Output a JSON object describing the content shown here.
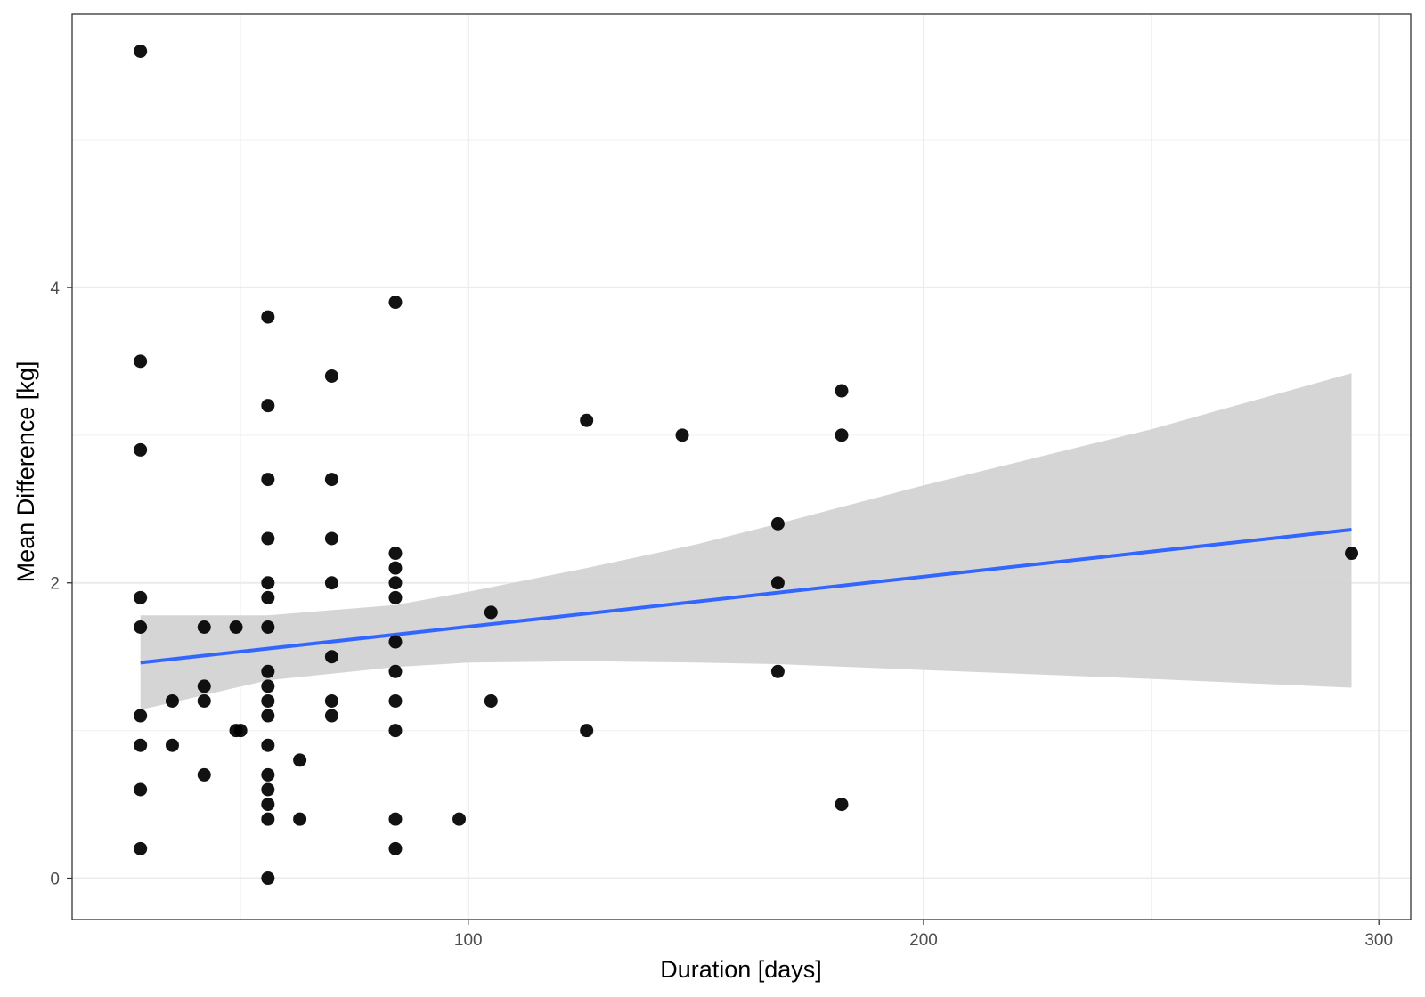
{
  "chart_data": {
    "type": "scatter",
    "xlabel": "Duration [days]",
    "ylabel": "Mean Difference [kg]",
    "xlim": [
      13,
      307
    ],
    "ylim": [
      -0.28,
      5.85
    ],
    "x_ticks": [
      100,
      200,
      300
    ],
    "y_ticks": [
      0,
      2,
      4
    ],
    "x_minor": [
      50,
      150,
      250
    ],
    "y_minor": [
      1,
      3,
      5
    ],
    "grid": true,
    "legend": "none",
    "points": [
      {
        "x": 28,
        "y": 5.6
      },
      {
        "x": 28,
        "y": 3.5
      },
      {
        "x": 28,
        "y": 2.9
      },
      {
        "x": 28,
        "y": 1.9
      },
      {
        "x": 28,
        "y": 1.7
      },
      {
        "x": 28,
        "y": 1.1
      },
      {
        "x": 28,
        "y": 0.9
      },
      {
        "x": 28,
        "y": 0.6
      },
      {
        "x": 28,
        "y": 0.2
      },
      {
        "x": 35,
        "y": 1.2
      },
      {
        "x": 35,
        "y": 0.9
      },
      {
        "x": 42,
        "y": 1.7
      },
      {
        "x": 42,
        "y": 1.3
      },
      {
        "x": 42,
        "y": 1.2
      },
      {
        "x": 42,
        "y": 0.7
      },
      {
        "x": 49,
        "y": 1.7
      },
      {
        "x": 49,
        "y": 1.0
      },
      {
        "x": 50,
        "y": 1.0
      },
      {
        "x": 56,
        "y": 3.8
      },
      {
        "x": 56,
        "y": 3.2
      },
      {
        "x": 56,
        "y": 2.7
      },
      {
        "x": 56,
        "y": 2.3
      },
      {
        "x": 56,
        "y": 2.0
      },
      {
        "x": 56,
        "y": 1.9
      },
      {
        "x": 56,
        "y": 1.7
      },
      {
        "x": 56,
        "y": 1.4
      },
      {
        "x": 56,
        "y": 1.3
      },
      {
        "x": 56,
        "y": 1.2
      },
      {
        "x": 56,
        "y": 1.1
      },
      {
        "x": 56,
        "y": 0.9
      },
      {
        "x": 56,
        "y": 0.7
      },
      {
        "x": 56,
        "y": 0.6
      },
      {
        "x": 56,
        "y": 0.5
      },
      {
        "x": 56,
        "y": 0.4
      },
      {
        "x": 56,
        "y": 0.0
      },
      {
        "x": 63,
        "y": 0.8
      },
      {
        "x": 63,
        "y": 0.4
      },
      {
        "x": 70,
        "y": 3.4
      },
      {
        "x": 70,
        "y": 2.7
      },
      {
        "x": 70,
        "y": 2.3
      },
      {
        "x": 70,
        "y": 2.0
      },
      {
        "x": 70,
        "y": 1.5
      },
      {
        "x": 70,
        "y": 1.2
      },
      {
        "x": 70,
        "y": 1.1
      },
      {
        "x": 84,
        "y": 3.9
      },
      {
        "x": 84,
        "y": 2.2
      },
      {
        "x": 84,
        "y": 2.1
      },
      {
        "x": 84,
        "y": 2.0
      },
      {
        "x": 84,
        "y": 1.9
      },
      {
        "x": 84,
        "y": 1.6
      },
      {
        "x": 84,
        "y": 1.4
      },
      {
        "x": 84,
        "y": 1.2
      },
      {
        "x": 84,
        "y": 1.0
      },
      {
        "x": 84,
        "y": 0.4
      },
      {
        "x": 84,
        "y": 0.2
      },
      {
        "x": 98,
        "y": 0.4
      },
      {
        "x": 105,
        "y": 1.8
      },
      {
        "x": 105,
        "y": 1.2
      },
      {
        "x": 126,
        "y": 3.1
      },
      {
        "x": 126,
        "y": 1.0
      },
      {
        "x": 147,
        "y": 3.0
      },
      {
        "x": 168,
        "y": 2.4
      },
      {
        "x": 168,
        "y": 2.0
      },
      {
        "x": 168,
        "y": 1.4
      },
      {
        "x": 182,
        "y": 3.3
      },
      {
        "x": 182,
        "y": 3.0
      },
      {
        "x": 182,
        "y": 0.5
      },
      {
        "x": 294,
        "y": 2.2
      }
    ],
    "trend": {
      "x": [
        28,
        294
      ],
      "y": [
        1.46,
        2.36
      ],
      "color": "#3366ff"
    },
    "confidence_band": {
      "x": [
        28,
        56,
        84,
        100,
        126,
        150,
        168,
        200,
        250,
        294
      ],
      "lower": [
        1.14,
        1.34,
        1.43,
        1.46,
        1.47,
        1.46,
        1.45,
        1.41,
        1.35,
        1.29
      ],
      "upper": [
        1.78,
        1.78,
        1.85,
        1.94,
        2.1,
        2.26,
        2.4,
        2.66,
        3.04,
        3.42
      ],
      "color": "#d3d3d3"
    },
    "point_color": "#000000"
  }
}
